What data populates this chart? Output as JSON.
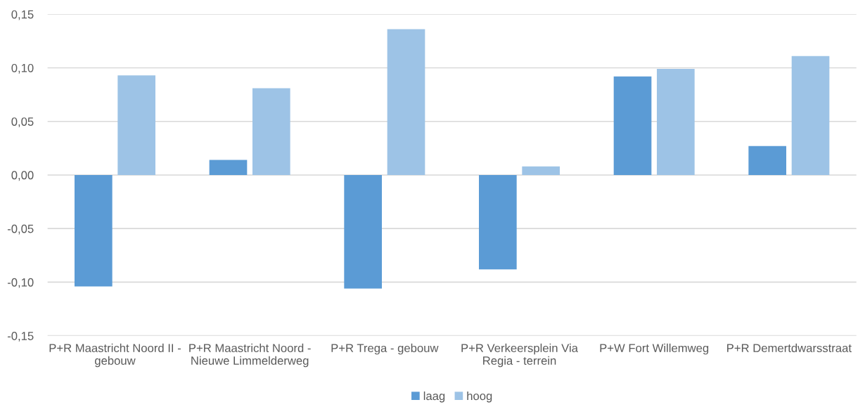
{
  "chart_data": {
    "type": "bar",
    "categories": [
      "P+R Maastricht Noord II - gebouw",
      "P+R Maastricht Noord - Nieuwe Limmelderweg",
      "P+R Trega - gebouw",
      "P+R Verkeersplein Via Regia - terrein",
      "P+W Fort Willemweg",
      "P+R Demertdwarsstraat"
    ],
    "series": [
      {
        "name": "laag",
        "color": "#5b9bd5",
        "values": [
          -0.104,
          0.014,
          -0.106,
          -0.088,
          0.092,
          0.027
        ]
      },
      {
        "name": "hoog",
        "color": "#9dc3e6",
        "values": [
          0.093,
          0.081,
          0.136,
          0.008,
          0.099,
          0.111
        ]
      }
    ],
    "ylim": [
      -0.15,
      0.15
    ],
    "yticks": [
      {
        "value": -0.15,
        "label": "-0,15"
      },
      {
        "value": -0.1,
        "label": "-0,10"
      },
      {
        "value": -0.05,
        "label": "-0,05"
      },
      {
        "value": 0,
        "label": "0,00"
      },
      {
        "value": 0.05,
        "label": "0,05"
      },
      {
        "value": 0.1,
        "label": "0,10"
      },
      {
        "value": 0.15,
        "label": "0,15"
      }
    ],
    "grid": "y",
    "legend": "bottom"
  }
}
